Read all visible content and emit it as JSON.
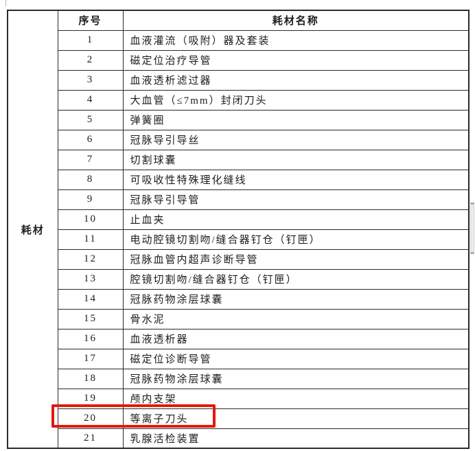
{
  "colors": {
    "highlight_red": "#e8160c",
    "border": "#2a2a2a",
    "text": "#1c1c1c"
  },
  "table": {
    "category_label": "耗材",
    "columns": {
      "index": "序号",
      "name": "耗材名称"
    },
    "rows": [
      {
        "num": "1",
        "name": "血液灌流（吸附）器及套装"
      },
      {
        "num": "2",
        "name": "磁定位治疗导管"
      },
      {
        "num": "3",
        "name": "血液透析滤过器"
      },
      {
        "num": "4",
        "name": "大血管（≤7mm）封闭刀头"
      },
      {
        "num": "5",
        "name": "弹簧圈"
      },
      {
        "num": "6",
        "name": "冠脉导引导丝"
      },
      {
        "num": "7",
        "name": "切割球囊"
      },
      {
        "num": "8",
        "name": "可吸收性特殊理化缝线"
      },
      {
        "num": "9",
        "name": "冠脉导引导管"
      },
      {
        "num": "10",
        "name": "止血夹"
      },
      {
        "num": "11",
        "name": "电动腔镜切割吻/缝合器钉仓（钉匣）"
      },
      {
        "num": "12",
        "name": "冠脉血管内超声诊断导管"
      },
      {
        "num": "13",
        "name": "腔镜切割吻/缝合器钉仓（钉匣）"
      },
      {
        "num": "14",
        "name": "冠脉药物涂层球囊"
      },
      {
        "num": "15",
        "name": "骨水泥"
      },
      {
        "num": "16",
        "name": "血液透析器"
      },
      {
        "num": "17",
        "name": "磁定位诊断导管"
      },
      {
        "num": "18",
        "name": "冠脉药物涂层球囊"
      },
      {
        "num": "19",
        "name": "颅内支架"
      },
      {
        "num": "20",
        "name": "等离子刀头",
        "highlighted": true
      },
      {
        "num": "21",
        "name": "乳腺活检装置"
      }
    ]
  }
}
